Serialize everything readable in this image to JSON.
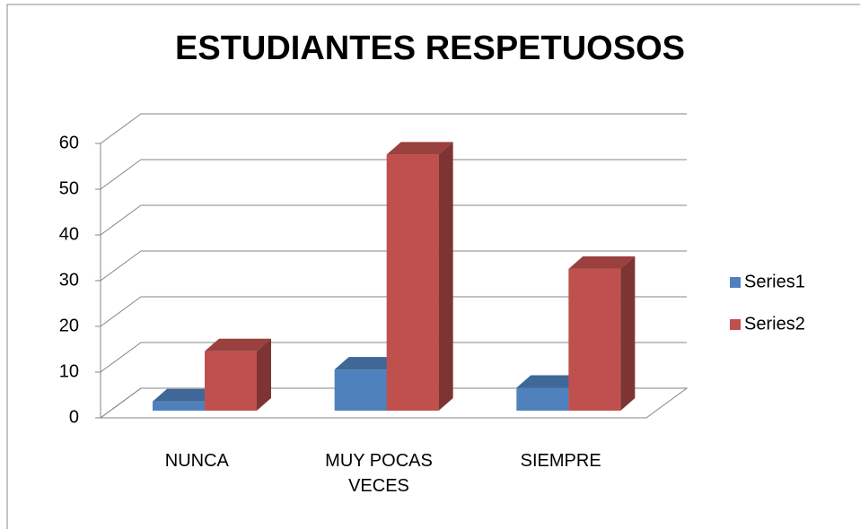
{
  "chart_data": {
    "type": "bar3d",
    "title": "ESTUDIANTES RESPETUOSOS",
    "categories": [
      "NUNCA",
      "MUY POCAS VECES",
      "SIEMPRE"
    ],
    "series": [
      {
        "name": "Series1",
        "color": "#4f81bd",
        "values": [
          2,
          9,
          5
        ]
      },
      {
        "name": "Series2",
        "color": "#c0504d",
        "values": [
          13,
          56,
          31
        ]
      }
    ],
    "ylim": [
      0,
      60
    ],
    "yticks": [
      0,
      10,
      20,
      30,
      40,
      50,
      60
    ],
    "grid": true,
    "legend": "right"
  }
}
